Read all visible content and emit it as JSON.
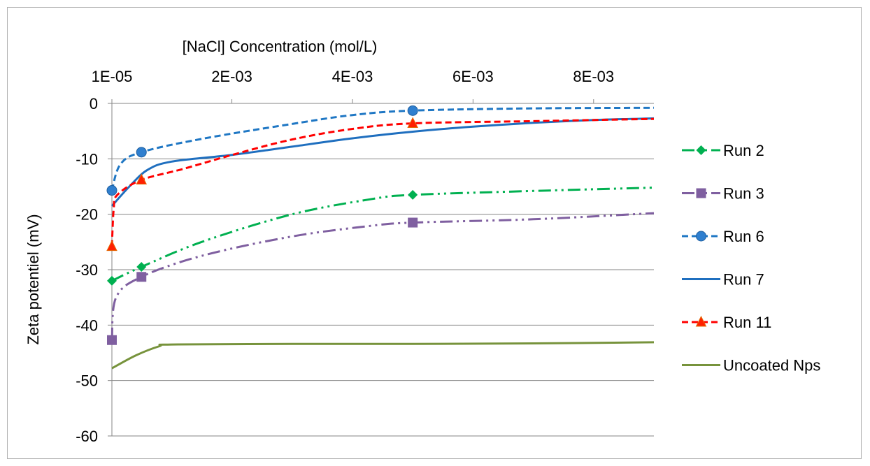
{
  "chart_data": {
    "type": "scatter",
    "title": "",
    "xlabel": "[NaCl] Concentration (mol/L)",
    "ylabel": "Zeta potentiel (mV)",
    "x_axis_position": "top",
    "xlim": [
      1e-05,
      0.009
    ],
    "ylim": [
      -60,
      0
    ],
    "x_tick_values": [
      1e-05,
      0.002,
      0.004,
      0.006,
      0.008
    ],
    "x_tick_labels": [
      "1E-05",
      "2E-03",
      "4E-03",
      "6E-03",
      "8E-03"
    ],
    "y_tick_values": [
      0,
      -10,
      -20,
      -30,
      -40,
      -50,
      -60
    ],
    "y_tick_labels": [
      "0",
      "-10",
      "-20",
      "-30",
      "-40",
      "-50",
      "-60"
    ],
    "grid": "horizontal",
    "legend_position": "right",
    "series": [
      {
        "name": "Run 2",
        "color": "#00b050",
        "dash": "dash-dot-dot",
        "marker": "diamond",
        "points": [
          [
            1e-05,
            -32
          ],
          [
            0.0005,
            -29.5
          ],
          [
            0.005,
            -16.5
          ]
        ],
        "curve": [
          [
            1e-05,
            -32
          ],
          [
            0.0005,
            -29.5
          ],
          [
            0.0015,
            -25
          ],
          [
            0.003,
            -20
          ],
          [
            0.0043,
            -17.3
          ],
          [
            0.005,
            -16.5
          ],
          [
            0.007,
            -15.8
          ],
          [
            0.009,
            -15.2
          ]
        ]
      },
      {
        "name": "Run 3",
        "color": "#7f5fa0",
        "dash": "dash-dot-dot",
        "marker": "square",
        "points": [
          [
            1e-05,
            -42.7
          ],
          [
            0.0005,
            -31.3
          ],
          [
            0.005,
            -21.5
          ]
        ],
        "curve": [
          [
            1e-05,
            -42.7
          ],
          [
            8e-05,
            -35
          ],
          [
            0.0005,
            -31.3
          ],
          [
            0.0015,
            -27.5
          ],
          [
            0.003,
            -24
          ],
          [
            0.0043,
            -22.1
          ],
          [
            0.005,
            -21.5
          ],
          [
            0.007,
            -20.9
          ],
          [
            0.009,
            -19.8
          ]
        ]
      },
      {
        "name": "Run 6",
        "color": "#1f77c4",
        "dash": "dashed",
        "marker": "circle",
        "points": [
          [
            1e-05,
            -15.7
          ],
          [
            0.0005,
            -8.8
          ],
          [
            0.005,
            -1.3
          ]
        ],
        "curve": [
          [
            1e-05,
            -15.7
          ],
          [
            0.00015,
            -11
          ],
          [
            0.0005,
            -8.8
          ],
          [
            0.0015,
            -6.4
          ],
          [
            0.003,
            -3.7
          ],
          [
            0.004,
            -2.1
          ],
          [
            0.005,
            -1.3
          ],
          [
            0.007,
            -0.9
          ],
          [
            0.009,
            -0.8
          ]
        ]
      },
      {
        "name": "Run 7",
        "color": "#1f6fbf",
        "dash": "solid",
        "marker": "none",
        "points": [],
        "curve": [
          [
            1e-05,
            -18.5
          ],
          [
            0.0003,
            -15
          ],
          [
            0.0006,
            -12
          ],
          [
            0.001,
            -10.5
          ],
          [
            0.002,
            -9.3
          ],
          [
            0.003,
            -7.8
          ],
          [
            0.004,
            -6.3
          ],
          [
            0.005,
            -5.1
          ],
          [
            0.006,
            -4.2
          ],
          [
            0.007,
            -3.5
          ],
          [
            0.008,
            -3.0
          ],
          [
            0.009,
            -2.7
          ]
        ]
      },
      {
        "name": "Run 11",
        "color": "#ff0000",
        "dash": "dashed",
        "marker": "triangle",
        "points": [
          [
            1e-05,
            -25.8
          ],
          [
            0.0005,
            -13.8
          ],
          [
            0.005,
            -3.6
          ]
        ],
        "curve": [
          [
            1e-05,
            -25.8
          ],
          [
            4e-05,
            -19
          ],
          [
            0.0001,
            -16.5
          ],
          [
            0.0005,
            -13.8
          ],
          [
            0.0012,
            -11.8
          ],
          [
            0.002,
            -9.3
          ],
          [
            0.003,
            -6.5
          ],
          [
            0.004,
            -4.6
          ],
          [
            0.005,
            -3.6
          ],
          [
            0.007,
            -3.2
          ],
          [
            0.009,
            -2.8
          ]
        ]
      },
      {
        "name": "Uncoated Nps",
        "color": "#77933c",
        "dash": "solid",
        "marker": "none",
        "points": [],
        "curve": [
          [
            1e-05,
            -47.8
          ],
          [
            0.0004,
            -45.5
          ],
          [
            0.0008,
            -43.8
          ],
          [
            0.001,
            -43.5
          ],
          [
            0.003,
            -43.4
          ],
          [
            0.005,
            -43.4
          ],
          [
            0.007,
            -43.3
          ],
          [
            0.009,
            -43.1
          ]
        ]
      }
    ]
  }
}
